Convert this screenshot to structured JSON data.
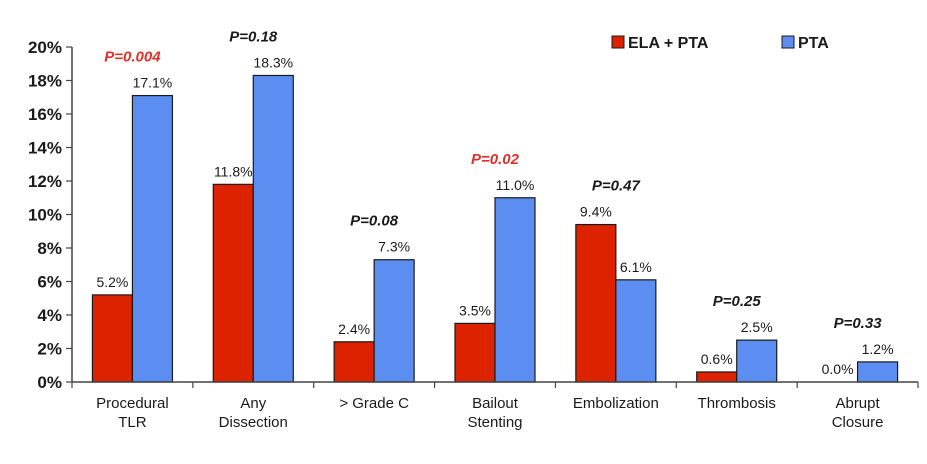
{
  "chart_data": {
    "type": "bar",
    "categories": [
      [
        "Procedural",
        "TLR"
      ],
      [
        "Any",
        "Dissection"
      ],
      [
        "> Grade C"
      ],
      [
        "Bailout",
        "Stenting"
      ],
      [
        "Embolization"
      ],
      [
        "Thrombosis"
      ],
      [
        "Abrupt",
        "Closure"
      ]
    ],
    "series": [
      {
        "name": "ELA + PTA",
        "color": "#dd2200",
        "values": [
          5.2,
          11.8,
          2.4,
          3.5,
          9.4,
          0.6,
          0.0
        ],
        "labels": [
          "5.2%",
          "11.8%",
          "2.4%",
          "3.5%",
          "9.4%",
          "0.6%",
          "0.0%"
        ]
      },
      {
        "name": "PTA",
        "color": "#5b8ef0",
        "values": [
          17.1,
          18.3,
          7.3,
          11.0,
          6.1,
          2.5,
          1.2
        ],
        "labels": [
          "17.1%",
          "18.3%",
          "7.3%",
          "11.0%",
          "6.1%",
          "2.5%",
          "1.2%"
        ]
      }
    ],
    "p_values": [
      "P=0.004",
      "P=0.18",
      "P=0.08",
      "P=0.02",
      "P=0.47",
      "P=0.25",
      "P=0.33"
    ],
    "p_significant": [
      true,
      false,
      false,
      true,
      false,
      false,
      false
    ],
    "p_colors": {
      "significant": "#e0302a",
      "default": "#1a1a1a"
    },
    "y_ticks": [
      "0%",
      "2%",
      "4%",
      "6%",
      "8%",
      "10%",
      "12%",
      "14%",
      "16%",
      "18%",
      "20%"
    ],
    "ylim": [
      0,
      20
    ],
    "grid": false,
    "legend_position": "top-right",
    "title": "",
    "xlabel": "",
    "ylabel": ""
  }
}
